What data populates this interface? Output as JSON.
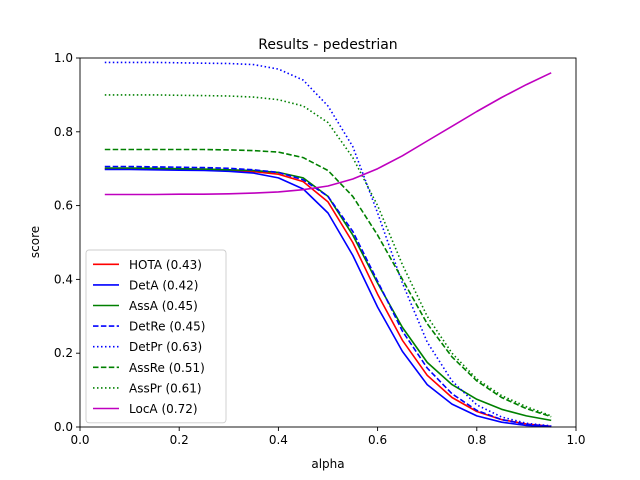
{
  "chart_data": {
    "type": "line",
    "title": "Results - pedestrian",
    "xlabel": "alpha",
    "ylabel": "score",
    "xlim": [
      0.0,
      1.0
    ],
    "ylim": [
      0.0,
      1.0
    ],
    "xticks": [
      "0.0",
      "0.2",
      "0.4",
      "0.6",
      "0.8",
      "1.0"
    ],
    "yticks": [
      "0.0",
      "0.2",
      "0.4",
      "0.6",
      "0.8",
      "1.0"
    ],
    "grid": false,
    "legend_position": "lower-left",
    "x": [
      0.05,
      0.1,
      0.15,
      0.2,
      0.25,
      0.3,
      0.35,
      0.4,
      0.45,
      0.5,
      0.55,
      0.6,
      0.65,
      0.7,
      0.75,
      0.8,
      0.85,
      0.9,
      0.95
    ],
    "series": [
      {
        "name": "HOTA (0.43)",
        "color": "#ff0000",
        "style": "solid",
        "values": [
          0.7,
          0.7,
          0.699,
          0.698,
          0.697,
          0.695,
          0.692,
          0.685,
          0.665,
          0.61,
          0.5,
          0.36,
          0.235,
          0.14,
          0.08,
          0.042,
          0.02,
          0.008,
          0.002
        ]
      },
      {
        "name": "DetA (0.42)",
        "color": "#0000ff",
        "style": "solid",
        "values": [
          0.698,
          0.698,
          0.697,
          0.696,
          0.695,
          0.693,
          0.688,
          0.675,
          0.645,
          0.58,
          0.465,
          0.325,
          0.205,
          0.115,
          0.062,
          0.03,
          0.013,
          0.004,
          0.001
        ]
      },
      {
        "name": "AssA (0.45)",
        "color": "#008000",
        "style": "solid",
        "values": [
          0.702,
          0.702,
          0.701,
          0.7,
          0.699,
          0.697,
          0.695,
          0.69,
          0.675,
          0.625,
          0.52,
          0.39,
          0.27,
          0.175,
          0.115,
          0.075,
          0.048,
          0.03,
          0.018
        ]
      },
      {
        "name": "DetRe (0.45)",
        "color": "#0000ff",
        "style": "dashed",
        "values": [
          0.706,
          0.706,
          0.705,
          0.704,
          0.703,
          0.701,
          0.697,
          0.69,
          0.67,
          0.625,
          0.53,
          0.395,
          0.26,
          0.16,
          0.09,
          0.045,
          0.02,
          0.007,
          0.002
        ]
      },
      {
        "name": "DetPr (0.63)",
        "color": "#0000ff",
        "style": "dotted",
        "values": [
          0.988,
          0.988,
          0.988,
          0.987,
          0.986,
          0.985,
          0.982,
          0.97,
          0.94,
          0.87,
          0.76,
          0.58,
          0.39,
          0.23,
          0.125,
          0.06,
          0.027,
          0.01,
          0.003
        ]
      },
      {
        "name": "AssRe (0.51)",
        "color": "#008000",
        "style": "dashed",
        "values": [
          0.752,
          0.752,
          0.752,
          0.752,
          0.752,
          0.751,
          0.749,
          0.745,
          0.73,
          0.695,
          0.625,
          0.52,
          0.4,
          0.28,
          0.19,
          0.125,
          0.08,
          0.05,
          0.028
        ]
      },
      {
        "name": "AssPr (0.61)",
        "color": "#008000",
        "style": "dotted",
        "values": [
          0.9,
          0.9,
          0.9,
          0.899,
          0.898,
          0.897,
          0.894,
          0.887,
          0.87,
          0.825,
          0.73,
          0.6,
          0.44,
          0.3,
          0.2,
          0.13,
          0.085,
          0.055,
          0.03
        ]
      },
      {
        "name": "LocA (0.72)",
        "color": "#bf00bf",
        "style": "solid",
        "values": [
          0.63,
          0.63,
          0.63,
          0.631,
          0.631,
          0.632,
          0.634,
          0.637,
          0.643,
          0.653,
          0.672,
          0.7,
          0.735,
          0.775,
          0.815,
          0.855,
          0.893,
          0.928,
          0.96
        ]
      }
    ]
  }
}
